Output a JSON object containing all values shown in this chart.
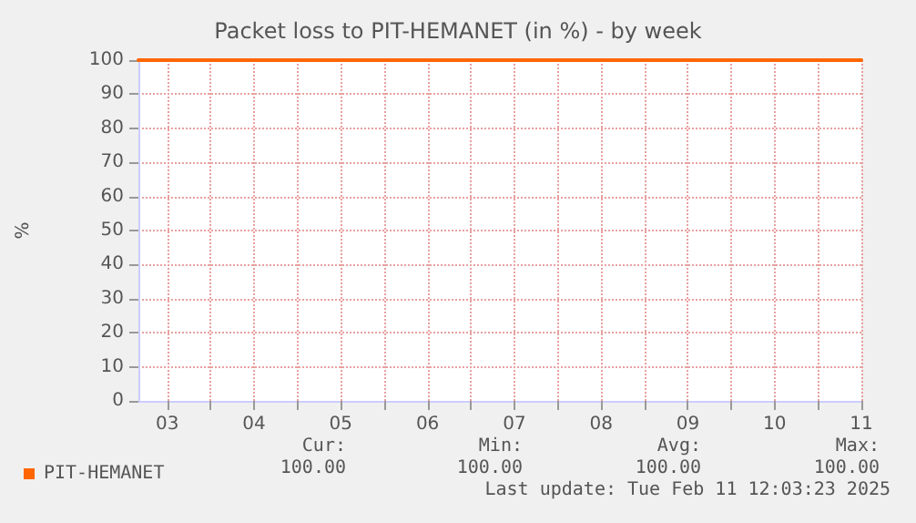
{
  "chart_data": {
    "type": "line",
    "title": "Packet loss to PIT-HEMANET (in %) - by week",
    "ylabel": "%",
    "x": [
      "2025-02-03T04:00",
      "2025-02-05T00:00",
      "2025-02-07T00:00",
      "2025-02-09T00:00",
      "2025-02-11T12:00"
    ],
    "series": [
      {
        "name": "PIT-HEMANET",
        "color": "#ff6600",
        "values": [
          100,
          100,
          100,
          100,
          100
        ]
      }
    ],
    "xlim": [
      "2025-02-03T04:00",
      "2025-02-11T12:00"
    ],
    "xticks": [
      {
        "value": "2025-02-03T12:00",
        "label": "03"
      },
      {
        "value": "2025-02-04T00:00",
        "label": null
      },
      {
        "value": "2025-02-04T12:00",
        "label": "04"
      },
      {
        "value": "2025-02-05T00:00",
        "label": null
      },
      {
        "value": "2025-02-05T12:00",
        "label": "05"
      },
      {
        "value": "2025-02-06T00:00",
        "label": null
      },
      {
        "value": "2025-02-06T12:00",
        "label": "06"
      },
      {
        "value": "2025-02-07T00:00",
        "label": null
      },
      {
        "value": "2025-02-07T12:00",
        "label": "07"
      },
      {
        "value": "2025-02-08T00:00",
        "label": null
      },
      {
        "value": "2025-02-08T12:00",
        "label": "08"
      },
      {
        "value": "2025-02-09T00:00",
        "label": null
      },
      {
        "value": "2025-02-09T12:00",
        "label": "09"
      },
      {
        "value": "2025-02-10T00:00",
        "label": null
      },
      {
        "value": "2025-02-10T12:00",
        "label": "10"
      },
      {
        "value": "2025-02-11T00:00",
        "label": null
      },
      {
        "value": "2025-02-11T12:00",
        "label": "11"
      }
    ],
    "ylim": [
      0,
      100
    ],
    "yticks": [
      0,
      10,
      20,
      30,
      40,
      50,
      60,
      70,
      80,
      90,
      100
    ],
    "grid": true,
    "legend": "bottom left",
    "marker": "none",
    "line_style": "solid",
    "annotations": [
      "Cur:",
      "Min:",
      "Avg:",
      "Max:",
      "100.00",
      "100.00",
      "100.00",
      "100.00",
      "Last update: Tue Feb 11 12:03:23 2025"
    ]
  }
}
